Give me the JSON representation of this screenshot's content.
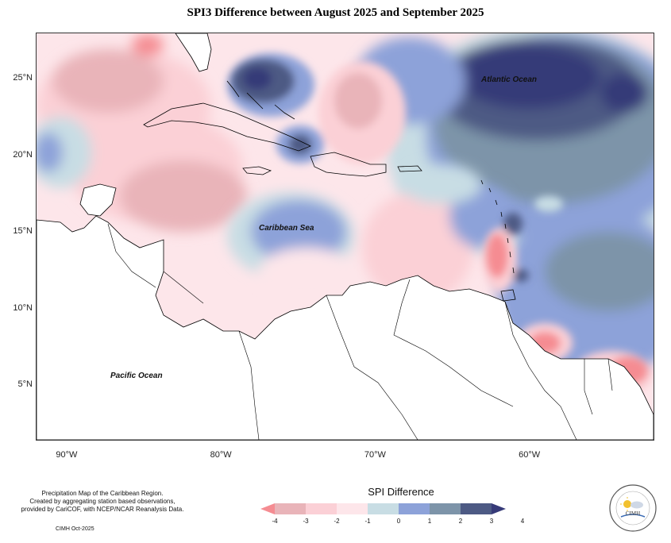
{
  "title": "SPI3 Difference between August 2025 and September 2025",
  "map": {
    "lat_range": [
      1.5,
      28
    ],
    "lon_range": [
      -92,
      -52
    ],
    "y_ticks": [
      "25°N",
      "20°N",
      "15°N",
      "10°N",
      "5°N"
    ],
    "y_tick_values": [
      25,
      20,
      15,
      10,
      5
    ],
    "x_ticks": [
      "90°W",
      "80°W",
      "70°W",
      "60°W"
    ],
    "x_tick_values": [
      -90,
      -80,
      -70,
      -60
    ],
    "labels": {
      "atlantic": "Atlantic Ocean",
      "caribbean": "Caribbean Sea",
      "pacific": "Pacific Ocean"
    },
    "colors": {
      "land": "#ffffff",
      "coastline": "#000000"
    }
  },
  "legend": {
    "title": "SPI Difference",
    "tick_labels": [
      "-4",
      "-3",
      "-2",
      "-1",
      "0",
      "1",
      "2",
      "3",
      "4"
    ],
    "bins": [
      {
        "range": "< -3",
        "color": "#f58c92"
      },
      {
        "range": "-3 to -2",
        "color": "#e9b4b9"
      },
      {
        "range": "-2 to -1",
        "color": "#fbd0d6"
      },
      {
        "range": "-1 to 0",
        "color": "#fde6ea"
      },
      {
        "range": "0 to 1",
        "color": "#c8dde4"
      },
      {
        "range": "1 to 2",
        "color": "#8da2d9"
      },
      {
        "range": "2 to 3",
        "color": "#7d94a9"
      },
      {
        "range": "3 to 4",
        "color": "#4d5a84"
      },
      {
        "range": "> 4",
        "color": "#363a78"
      }
    ]
  },
  "footer": {
    "line1": "Precipitation Map of the Caribbean Region.",
    "line2": "Created by aggregating station based observations,",
    "line3": "provided by CariCOF, with NCEP/NCAR Reanalysis Data.",
    "credit": "CIMH Oct-2025"
  },
  "logo": {
    "text": "CIMH",
    "icon": "cimh-logo-icon"
  }
}
